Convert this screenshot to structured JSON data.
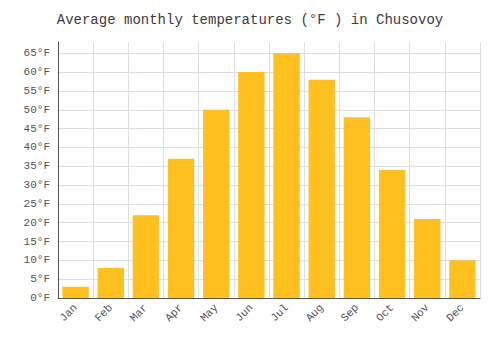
{
  "chart_data": {
    "type": "bar",
    "title": "Average monthly temperatures (°F ) in Chusovoy",
    "categories": [
      "Jan",
      "Feb",
      "Mar",
      "Apr",
      "May",
      "Jun",
      "Jul",
      "Aug",
      "Sep",
      "Oct",
      "Nov",
      "Dec"
    ],
    "values": [
      3,
      8,
      22,
      37,
      50,
      60,
      65,
      58,
      48,
      34,
      21,
      10
    ],
    "color": "#FFC020",
    "ylim": [
      0,
      68
    ],
    "yticks": [
      {
        "value": 0,
        "label": "0°F"
      },
      {
        "value": 5,
        "label": "5°F"
      },
      {
        "value": 10,
        "label": "10°F"
      },
      {
        "value": 15,
        "label": "15°F"
      },
      {
        "value": 20,
        "label": "20°F"
      },
      {
        "value": 25,
        "label": "25°F"
      },
      {
        "value": 30,
        "label": "30°F"
      },
      {
        "value": 35,
        "label": "35°F"
      },
      {
        "value": 40,
        "label": "40°F"
      },
      {
        "value": 45,
        "label": "45°F"
      },
      {
        "value": 50,
        "label": "50°F"
      },
      {
        "value": 55,
        "label": "55°F"
      },
      {
        "value": 60,
        "label": "60°F"
      },
      {
        "value": 65,
        "label": "65°F"
      }
    ],
    "grid": true
  }
}
